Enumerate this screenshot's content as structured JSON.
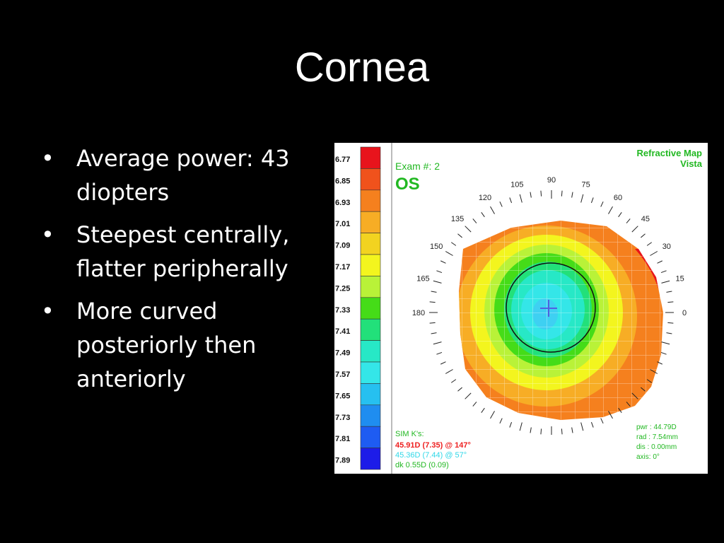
{
  "slide": {
    "title": "Cornea",
    "bullet_marker": "•",
    "bullets": [
      "Average power: 43 diopters",
      "Steepest centrally, flatter peripherally",
      "More curved posteriorly then anteriorly"
    ]
  },
  "topography": {
    "scale_values": [
      "6.77",
      "6.85",
      "6.93",
      "7.01",
      "7.09",
      "7.17",
      "7.25",
      "7.33",
      "7.41",
      "7.49",
      "7.57",
      "7.65",
      "7.73",
      "7.81",
      "7.89"
    ],
    "scale_colors": [
      "#e8141c",
      "#f0521c",
      "#f5801e",
      "#f7ad25",
      "#f2d320",
      "#f3f51e",
      "#b9f238",
      "#45dc18",
      "#22e07a",
      "#27e8c6",
      "#34e6e8",
      "#26c0f0",
      "#1f8df0",
      "#1e5cf2",
      "#1d1ce8"
    ],
    "exam_label": "Exam #: 2",
    "eye": "OS",
    "map_title": "Refractive Map",
    "map_subtitle": "Vista",
    "angle_labels": [
      "0",
      "15",
      "30",
      "45",
      "60",
      "75",
      "90",
      "105",
      "120",
      "135",
      "150",
      "165",
      "180"
    ],
    "sim_k_title": "SIM K's:",
    "sim_k_steep": "45.91D (7.35) @ 147°",
    "sim_k_flat": "45.36D (7.44) @ 57°",
    "sim_k_dk": "dk 0.55D (0.09)",
    "pwr": "pwr : 44.79D",
    "rad": "rad : 7.54mm",
    "dis": "dis : 0.00mm",
    "axis": "axis:  0°",
    "colors": {
      "label_green": "#22b822",
      "steep_red": "#ee2020",
      "flat_cyan": "#30d8e8"
    }
  }
}
